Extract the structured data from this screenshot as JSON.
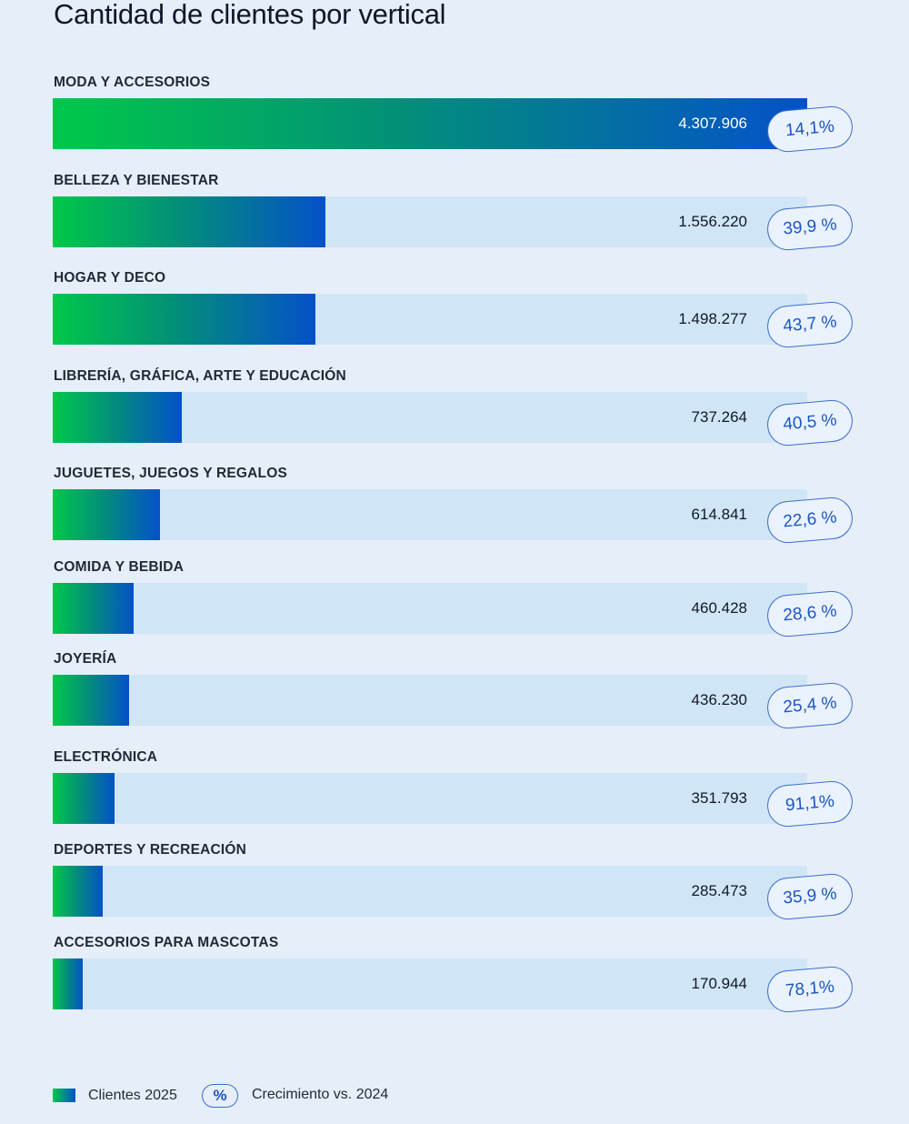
{
  "chart_data": {
    "type": "bar",
    "orientation": "horizontal",
    "title": "Cantidad de clientes por vertical",
    "xlabel": "",
    "ylabel": "",
    "xlim": [
      0,
      4307906
    ],
    "categories": [
      "MODA Y ACCESORIOS",
      "BELLEZA Y BIENESTAR",
      "HOGAR Y DECO",
      "LIBRERÍA, GRÁFICA, ARTE Y EDUCACIÓN",
      "JUGUETES, JUEGOS Y REGALOS",
      "COMIDA Y BEBIDA",
      "JOYERÍA",
      "ELECTRÓNICA",
      "DEPORTES Y RECREACIÓN",
      "ACCESORIOS PARA MASCOTAS"
    ],
    "series": [
      {
        "name": "Clientes 2025",
        "values": [
          4307906,
          1556220,
          1498277,
          737264,
          614841,
          460428,
          436230,
          351793,
          285473,
          170944
        ],
        "labels": [
          "4.307.906",
          "1.556.220",
          "1.498.277",
          "737.264",
          "614.841",
          "460.428",
          "436.230",
          "351.793",
          "285.473",
          "170.944"
        ]
      },
      {
        "name": "Crecimiento vs. 2024",
        "values": [
          14.1,
          39.9,
          43.7,
          40.5,
          22.6,
          28.6,
          25.4,
          91.1,
          35.9,
          78.1
        ],
        "labels": [
          "14,1%",
          "39,9 %",
          "43,7 %",
          "40,5 %",
          "22,6 %",
          "28,6 %",
          "25,4 %",
          "91,1%",
          "35,9 %",
          "78,1%"
        ]
      }
    ],
    "legend": {
      "position": "bottom-left",
      "entries": [
        "Clientes 2025",
        "Crecimiento vs. 2024"
      ],
      "growth_symbol": "%"
    },
    "colors": {
      "gradient_start": "#00c84a",
      "gradient_end": "#0451c9",
      "track": "#d0e6f6",
      "pill_text": "#1a56c4",
      "background": "#e6eef9"
    }
  }
}
